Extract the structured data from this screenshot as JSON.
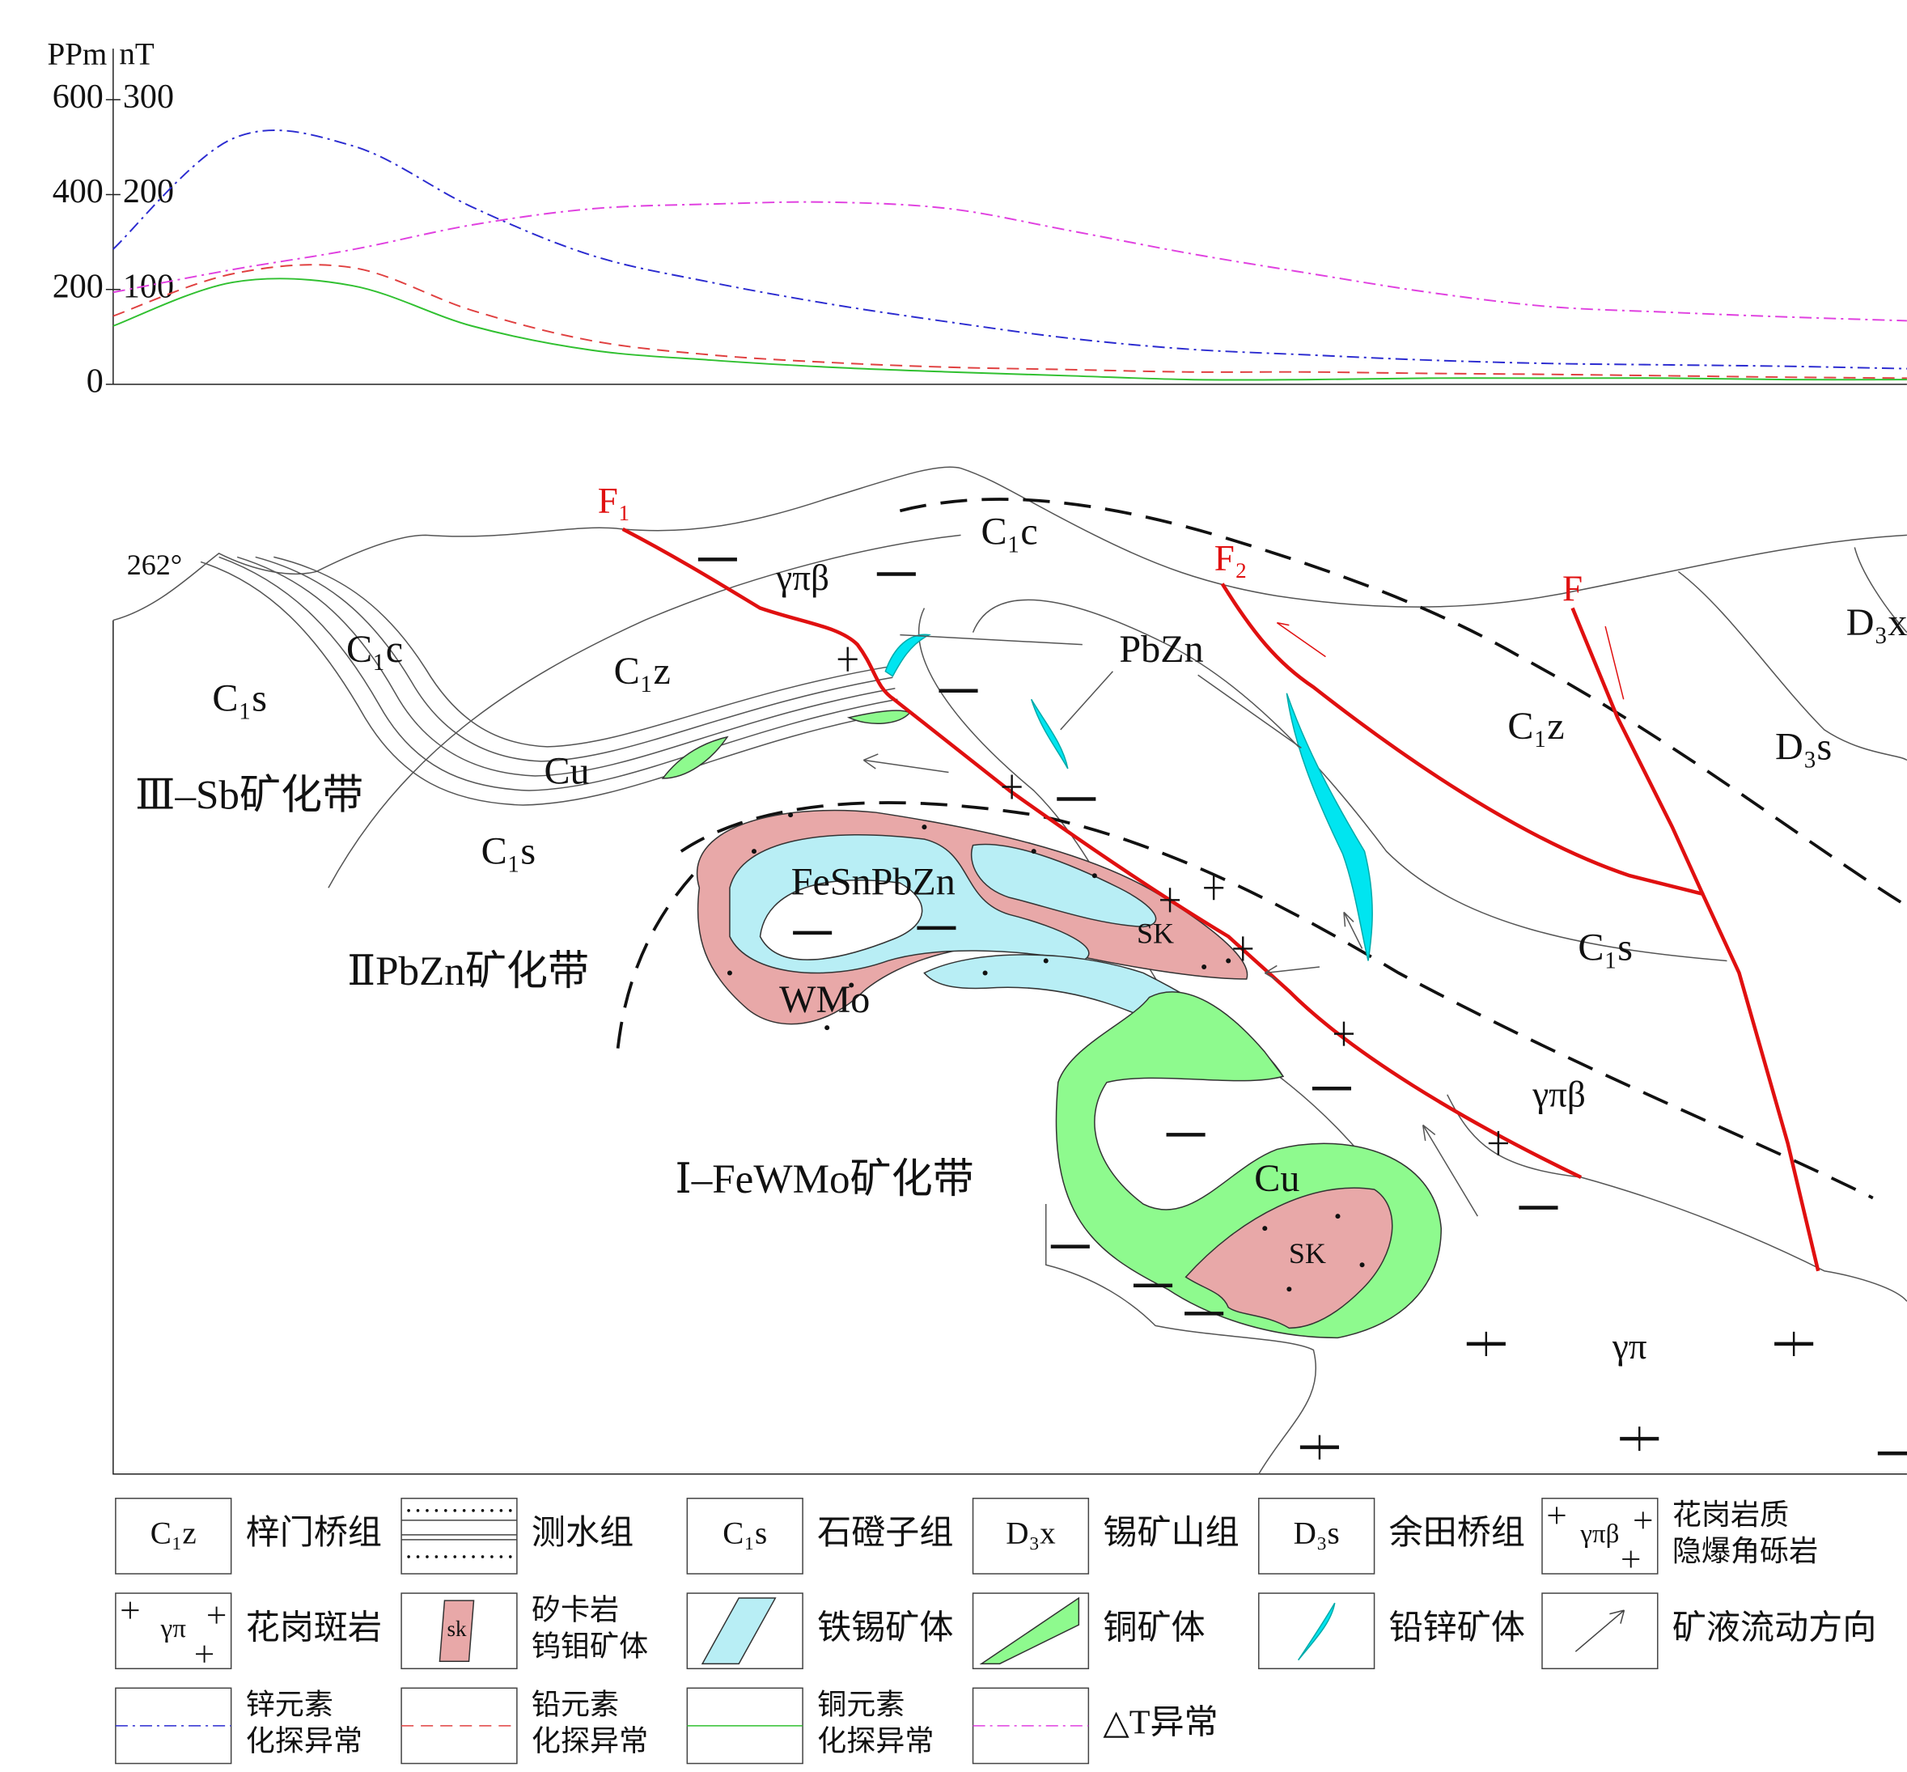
{
  "chart_data": {
    "type": "line",
    "yaxis_label": "PPm",
    "y2axis_label": "nT",
    "ylim": [
      0,
      600
    ],
    "yticks": [
      0,
      200,
      400,
      600
    ],
    "y2lim": [
      0,
      300
    ],
    "y2ticks": [
      100,
      200,
      300
    ],
    "series": [
      {
        "color": "#2b2bd0",
        "dash": "dashdot",
        "values": [
          285,
          518,
          503,
          374,
          272,
          215,
          169,
          131,
          97,
          74,
          62,
          51,
          44,
          41,
          38,
          33
        ]
      },
      {
        "color": "#e04040",
        "dash": "dashed",
        "values": [
          144,
          233,
          246,
          156,
          92,
          62,
          46,
          36,
          31,
          26,
          26,
          23,
          21,
          18,
          15,
          13
        ]
      },
      {
        "color": "#30c030",
        "dash": "solid",
        "values": [
          123,
          215,
          208,
          123,
          72,
          51,
          36,
          26,
          18,
          10,
          10,
          13,
          13,
          13,
          10,
          10
        ]
      },
      {
        "color": "#e040e0",
        "dash": "dashdot",
        "axis": "y2",
        "values": [
          97,
          121,
          142,
          168,
          185,
          190,
          192,
          185,
          162,
          138,
          117,
          97,
          82,
          76,
          71,
          67
        ]
      }
    ]
  },
  "section": {
    "labels": [
      "262°",
      "F₁",
      "F₂",
      "F",
      "C₁c",
      "C₁c",
      "C₁z",
      "C₁s",
      "C₁s",
      "C₁z",
      "D₃s",
      "D₃x",
      "C₁s",
      "γπβ",
      "γπβ",
      "γπ",
      "PbZn",
      "Cu",
      "Cu",
      "FeSnPbZn",
      "SK",
      "SK",
      "WMo",
      "Ⅲ–Sb矿化带",
      "ⅡPbZn矿化带",
      "Ⅰ–FeWMo矿化带"
    ]
  },
  "legend": [
    {
      "symbol": "C₁z",
      "lines": [
        "梓门桥组"
      ]
    },
    {
      "lines": [
        "测水组"
      ]
    },
    {
      "symbol": "C₁s",
      "lines": [
        "石磴子组"
      ]
    },
    {
      "symbol": "D₃x",
      "lines": [
        "锡矿山组"
      ]
    },
    {
      "symbol": "D₃s",
      "lines": [
        "余田桥组"
      ]
    },
    {
      "symbol": "γπβ",
      "lines": [
        "花岗岩质",
        "隐爆角砾岩"
      ]
    },
    {
      "symbol": "γπ",
      "lines": [
        "花岗斑岩"
      ]
    },
    {
      "symbol": "sk",
      "lines": [
        "矽卡岩",
        "钨钼矿体"
      ]
    },
    {
      "lines": [
        "铁锡矿体"
      ]
    },
    {
      "lines": [
        "铜矿体"
      ]
    },
    {
      "lines": [
        "铅锌矿体"
      ]
    },
    {
      "lines": [
        "矿液流动方向"
      ]
    },
    {
      "lines": [
        "锌元素",
        "化探异常"
      ]
    },
    {
      "lines": [
        "铅元素",
        "化探异常"
      ]
    },
    {
      "lines": [
        "铜元素",
        "化探异常"
      ]
    },
    {
      "lines": [
        "△T异常"
      ]
    }
  ]
}
